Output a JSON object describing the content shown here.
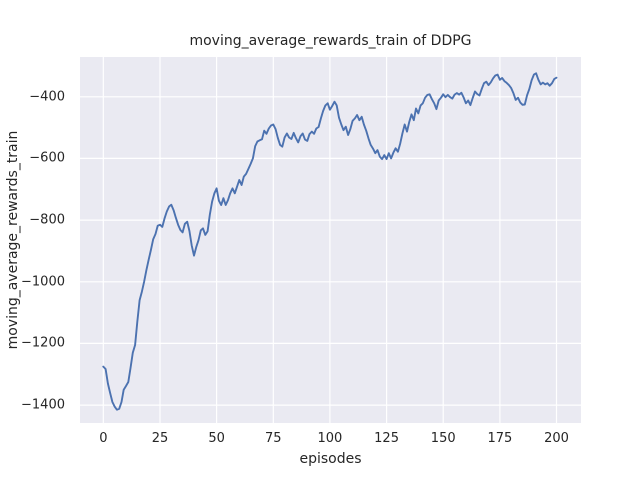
{
  "figure": {
    "title": "moving_average_rewards_train of DDPG",
    "xlabel": "episodes",
    "ylabel": "moving_average_rewards_train",
    "colors": {
      "figure_bg": "#ffffff",
      "axes_bg": "#eaeaf2",
      "grid": "#ffffff",
      "line": "#4c72b0",
      "text": "#262626"
    }
  },
  "chart_data": {
    "type": "line",
    "title": "moving_average_rewards_train of DDPG",
    "xlabel": "episodes",
    "ylabel": "moving_average_rewards_train",
    "xlim": [
      -10.3,
      210.8
    ],
    "ylim": [
      -1458,
      -271
    ],
    "x_ticks": [
      0,
      25,
      50,
      75,
      100,
      125,
      150,
      175,
      200
    ],
    "y_ticks": [
      -400,
      -600,
      -800,
      -1000,
      -1200,
      -1400
    ],
    "grid": true,
    "legend": false,
    "series": [
      {
        "name": "moving_average_rewards_train",
        "x": [
          0,
          1,
          2,
          3,
          4,
          5,
          6,
          7,
          8,
          9,
          10,
          11,
          12,
          13,
          14,
          15,
          16,
          17,
          18,
          19,
          20,
          21,
          22,
          23,
          24,
          25,
          26,
          27,
          28,
          29,
          30,
          31,
          32,
          33,
          34,
          35,
          36,
          37,
          38,
          39,
          40,
          41,
          42,
          43,
          44,
          45,
          46,
          47,
          48,
          49,
          50,
          51,
          52,
          53,
          54,
          55,
          56,
          57,
          58,
          59,
          60,
          61,
          62,
          63,
          64,
          65,
          66,
          67,
          68,
          69,
          70,
          71,
          72,
          73,
          74,
          75,
          76,
          77,
          78,
          79,
          80,
          81,
          82,
          83,
          84,
          85,
          86,
          87,
          88,
          89,
          90,
          91,
          92,
          93,
          94,
          95,
          96,
          97,
          98,
          99,
          100,
          101,
          102,
          103,
          104,
          105,
          106,
          107,
          108,
          109,
          110,
          111,
          112,
          113,
          114,
          115,
          116,
          117,
          118,
          119,
          120,
          121,
          122,
          123,
          124,
          125,
          126,
          127,
          128,
          129,
          130,
          131,
          132,
          133,
          134,
          135,
          136,
          137,
          138,
          139,
          140,
          141,
          142,
          143,
          144,
          145,
          146,
          147,
          148,
          149,
          150,
          151,
          152,
          153,
          154,
          155,
          156,
          157,
          158,
          159,
          160,
          161,
          162,
          163,
          164,
          165,
          166,
          167,
          168,
          169,
          170,
          171,
          172,
          173,
          174,
          175,
          176,
          177,
          178,
          179,
          180,
          181,
          182,
          183,
          184,
          185,
          186,
          187,
          188,
          189,
          190,
          191,
          192,
          193,
          194,
          195,
          196,
          197,
          198,
          199,
          200
        ],
        "y": [
          -1275,
          -1283,
          -1330,
          -1360,
          -1390,
          -1405,
          -1415,
          -1412,
          -1390,
          -1350,
          -1338,
          -1325,
          -1280,
          -1230,
          -1205,
          -1130,
          -1060,
          -1032,
          -1000,
          -962,
          -928,
          -897,
          -862,
          -845,
          -818,
          -815,
          -822,
          -795,
          -772,
          -756,
          -750,
          -768,
          -792,
          -815,
          -832,
          -840,
          -812,
          -805,
          -835,
          -882,
          -915,
          -888,
          -865,
          -833,
          -827,
          -848,
          -836,
          -783,
          -740,
          -713,
          -697,
          -737,
          -751,
          -729,
          -751,
          -735,
          -713,
          -697,
          -713,
          -692,
          -670,
          -686,
          -659,
          -650,
          -634,
          -618,
          -600,
          -560,
          -545,
          -541,
          -538,
          -510,
          -520,
          -503,
          -493,
          -490,
          -505,
          -533,
          -556,
          -562,
          -532,
          -519,
          -532,
          -537,
          -517,
          -534,
          -548,
          -528,
          -519,
          -539,
          -543,
          -521,
          -513,
          -520,
          -503,
          -498,
          -470,
          -446,
          -428,
          -421,
          -442,
          -430,
          -416,
          -428,
          -468,
          -490,
          -508,
          -497,
          -524,
          -505,
          -478,
          -470,
          -459,
          -476,
          -465,
          -490,
          -510,
          -535,
          -556,
          -568,
          -583,
          -573,
          -594,
          -602,
          -589,
          -602,
          -583,
          -600,
          -581,
          -567,
          -578,
          -552,
          -519,
          -490,
          -513,
          -482,
          -457,
          -476,
          -438,
          -454,
          -428,
          -421,
          -403,
          -394,
          -392,
          -408,
          -421,
          -440,
          -412,
          -403,
          -392,
          -401,
          -394,
          -401,
          -406,
          -393,
          -388,
          -393,
          -387,
          -402,
          -421,
          -412,
          -427,
          -404,
          -383,
          -391,
          -396,
          -374,
          -356,
          -351,
          -362,
          -353,
          -340,
          -331,
          -328,
          -345,
          -339,
          -349,
          -355,
          -362,
          -372,
          -389,
          -410,
          -403,
          -419,
          -426,
          -425,
          -395,
          -375,
          -347,
          -328,
          -324,
          -345,
          -360,
          -354,
          -360,
          -356,
          -364,
          -356,
          -342,
          -338
        ]
      }
    ]
  }
}
